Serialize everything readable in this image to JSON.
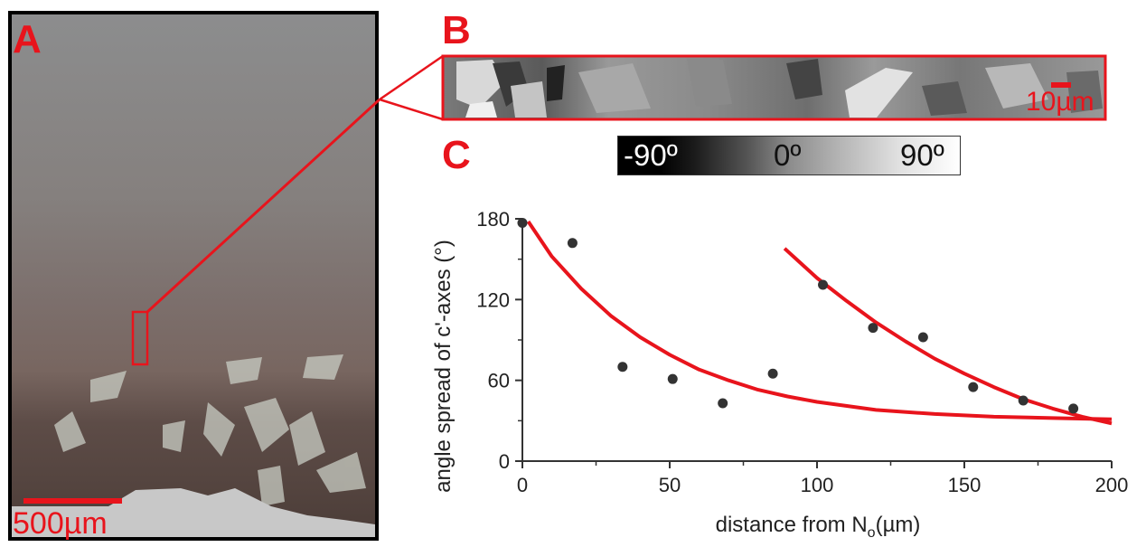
{
  "panels": {
    "a_label": "A",
    "b_label": "B",
    "c_label": "C"
  },
  "micrograph": {
    "scalebar_label": "500µm"
  },
  "ebsd": {
    "scalebar_label": "10µm"
  },
  "colorbar": {
    "labels": [
      "-90º",
      "0º",
      "90º"
    ]
  },
  "colors": {
    "accent_red": "#e8141c",
    "marker": "#333333"
  },
  "chart_data": {
    "type": "scatter",
    "xlabel_main": "distance from N",
    "xlabel_sub": "o",
    "xlabel_unit": "(µm)",
    "ylabel": "angle spread of c'-axes (°)",
    "xlim": [
      0,
      200
    ],
    "ylim": [
      0,
      180
    ],
    "x_ticks": [
      0,
      50,
      100,
      150,
      200
    ],
    "y_ticks": [
      0,
      60,
      120,
      180
    ],
    "points": {
      "x": [
        0,
        17,
        34,
        51,
        68,
        85,
        102,
        119,
        136,
        153,
        170,
        187
      ],
      "y": [
        177,
        162,
        70,
        61,
        43,
        65,
        131,
        99,
        92,
        55,
        45,
        39
      ]
    },
    "fit_curves": [
      {
        "x": [
          2,
          10,
          20,
          30,
          40,
          50,
          60,
          70,
          80,
          90,
          100,
          120,
          140,
          160,
          180,
          200
        ],
        "y": [
          178,
          152,
          128,
          108,
          92,
          79,
          68,
          60,
          53,
          48,
          44,
          38,
          35,
          33,
          32,
          31
        ]
      },
      {
        "x": [
          89,
          100,
          110,
          120,
          130,
          140,
          150,
          160,
          170,
          180,
          190,
          200
        ],
        "y": [
          158,
          136,
          119,
          103,
          89,
          76,
          65,
          55,
          46,
          39,
          33,
          28
        ]
      }
    ]
  }
}
